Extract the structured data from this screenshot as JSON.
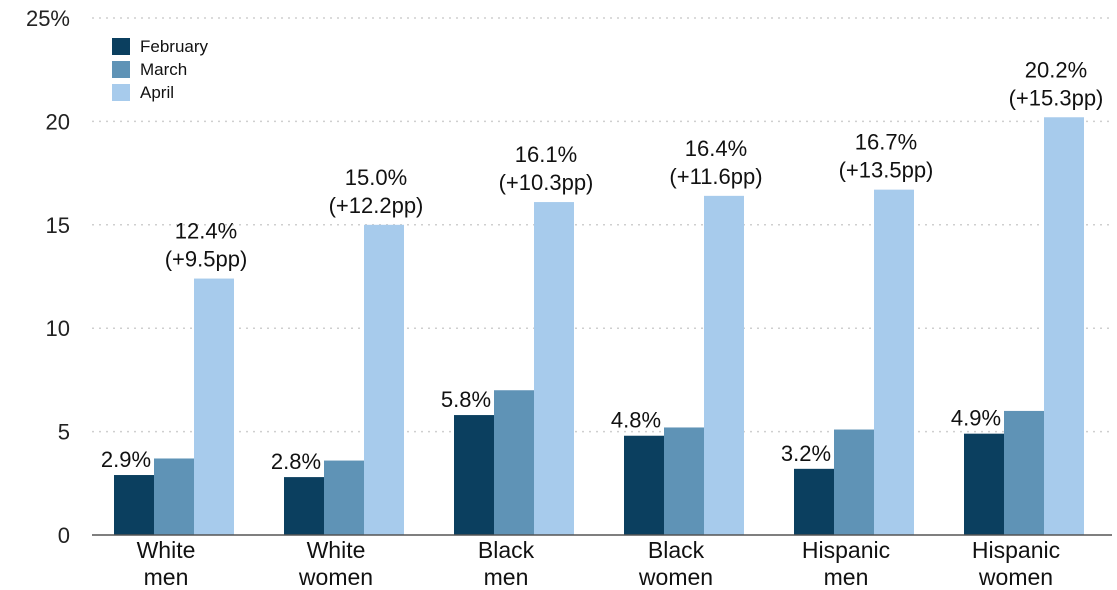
{
  "chart_data": {
    "type": "bar",
    "categories": [
      [
        "White",
        "men"
      ],
      [
        "White",
        "women"
      ],
      [
        "Black",
        "men"
      ],
      [
        "Black",
        "women"
      ],
      [
        "Hispanic",
        "men"
      ],
      [
        "Hispanic",
        "women"
      ]
    ],
    "series": [
      {
        "name": "February",
        "color": "#0b3f5f",
        "values": [
          2.9,
          2.8,
          5.8,
          4.8,
          3.2,
          4.9
        ]
      },
      {
        "name": "March",
        "color": "#5f93b6",
        "values": [
          3.7,
          3.6,
          7.0,
          5.2,
          5.1,
          6.0
        ]
      },
      {
        "name": "April",
        "color": "#a7cbec",
        "values": [
          12.4,
          15.0,
          16.1,
          16.4,
          16.7,
          20.2
        ]
      }
    ],
    "feb_labels": [
      "2.9%",
      "2.8%",
      "5.8%",
      "4.8%",
      "3.2%",
      "4.9%"
    ],
    "april_labels": [
      [
        "12.4%",
        "(+9.5pp)"
      ],
      [
        "15.0%",
        "(+12.2pp)"
      ],
      [
        "16.1%",
        "(+10.3pp)"
      ],
      [
        "16.4%",
        "(+11.6pp)"
      ],
      [
        "16.7%",
        "(+13.5pp)"
      ],
      [
        "20.2%",
        "(+15.3pp)"
      ]
    ],
    "y_ticks": [
      0,
      5,
      10,
      15,
      20,
      25
    ],
    "y_tick_labels": [
      "0",
      "5",
      "10",
      "15",
      "20",
      "25%"
    ],
    "ylim": [
      0,
      25
    ],
    "grid": true,
    "legend_position": "top-left"
  }
}
